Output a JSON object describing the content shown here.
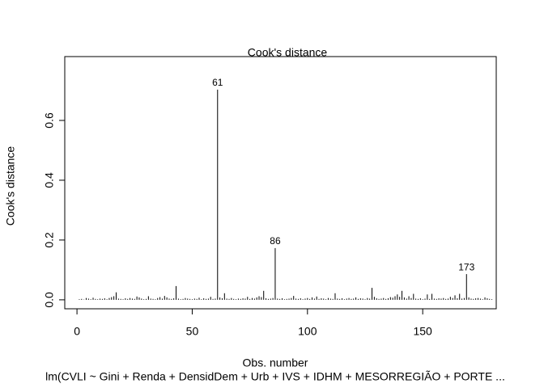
{
  "chart_data": {
    "type": "stem",
    "title": "Cook's distance",
    "x_label": "Obs. number",
    "y_label": "Cook's distance",
    "subtitle": "lm(CVLI ~ Gini + Renda + DensidDem + Urb + IVS + IDHM + MESORREGIÃO + PORTE ...",
    "color": "#000000",
    "xlim": [
      -5.3,
      181.9
    ],
    "ylim": [
      -0.03,
      0.8135
    ],
    "xticks": [
      0,
      50,
      100,
      150
    ],
    "yticks": [
      {
        "value": 0,
        "label": "0.0"
      },
      0.2,
      0.4,
      0.6
    ],
    "x": [
      1,
      2,
      3,
      4,
      5,
      6,
      7,
      8,
      9,
      10,
      11,
      12,
      13,
      14,
      15,
      16,
      17,
      18,
      19,
      20,
      21,
      22,
      23,
      24,
      25,
      26,
      27,
      28,
      29,
      30,
      31,
      32,
      33,
      34,
      35,
      36,
      37,
      38,
      39,
      40,
      41,
      42,
      43,
      44,
      45,
      46,
      47,
      48,
      49,
      50,
      51,
      52,
      53,
      54,
      55,
      56,
      57,
      58,
      59,
      60,
      61,
      62,
      63,
      64,
      65,
      66,
      67,
      68,
      69,
      70,
      71,
      72,
      73,
      74,
      75,
      76,
      77,
      78,
      79,
      80,
      81,
      82,
      83,
      84,
      85,
      86,
      87,
      88,
      89,
      90,
      91,
      92,
      93,
      94,
      95,
      96,
      97,
      98,
      99,
      100,
      101,
      102,
      103,
      104,
      105,
      106,
      107,
      108,
      109,
      110,
      111,
      112,
      113,
      114,
      115,
      116,
      117,
      118,
      119,
      120,
      121,
      122,
      123,
      124,
      125,
      126,
      127,
      128,
      129,
      130,
      131,
      132,
      133,
      134,
      135,
      136,
      137,
      138,
      139,
      140,
      141,
      142,
      143,
      144,
      145,
      146,
      147,
      148,
      149,
      150,
      151,
      152,
      153,
      154,
      155,
      156,
      157,
      158,
      159,
      160,
      161,
      162,
      163,
      164,
      165,
      166,
      167,
      168,
      169,
      170,
      171,
      172,
      173,
      174,
      175,
      176,
      177,
      178,
      179,
      180
    ],
    "values": [
      0.002,
      0.003,
      0.001,
      0.006,
      0.004,
      0.002,
      0.007,
      0.003,
      0.002,
      0.004,
      0.003,
      0.005,
      0.002,
      0.006,
      0.009,
      0.012,
      0.025,
      0.004,
      0.003,
      0.002,
      0.005,
      0.003,
      0.006,
      0.004,
      0.003,
      0.011,
      0.008,
      0.004,
      0.002,
      0.003,
      0.012,
      0.004,
      0.003,
      0.002,
      0.006,
      0.009,
      0.004,
      0.013,
      0.008,
      0.004,
      0.003,
      0.005,
      0.046,
      0.004,
      0.002,
      0.003,
      0.006,
      0.004,
      0.003,
      0.002,
      0.004,
      0.003,
      0.007,
      0.002,
      0.005,
      0.003,
      0.004,
      0.01,
      0.003,
      0.004,
      0.703,
      0.008,
      0.005,
      0.022,
      0.004,
      0.003,
      0.006,
      0.003,
      0.002,
      0.004,
      0.003,
      0.005,
      0.004,
      0.01,
      0.003,
      0.006,
      0.004,
      0.008,
      0.012,
      0.009,
      0.03,
      0.005,
      0.003,
      0.004,
      0.006,
      0.173,
      0.004,
      0.003,
      0.005,
      0.002,
      0.003,
      0.004,
      0.006,
      0.013,
      0.004,
      0.003,
      0.005,
      0.002,
      0.004,
      0.006,
      0.003,
      0.008,
      0.004,
      0.011,
      0.003,
      0.005,
      0.004,
      0.002,
      0.006,
      0.004,
      0.003,
      0.022,
      0.004,
      0.003,
      0.005,
      0.002,
      0.004,
      0.006,
      0.003,
      0.004,
      0.008,
      0.003,
      0.005,
      0.004,
      0.002,
      0.006,
      0.004,
      0.04,
      0.01,
      0.005,
      0.003,
      0.004,
      0.006,
      0.003,
      0.005,
      0.009,
      0.007,
      0.012,
      0.018,
      0.01,
      0.03,
      0.008,
      0.004,
      0.012,
      0.006,
      0.02,
      0.004,
      0.003,
      0.005,
      0.002,
      0.004,
      0.018,
      0.003,
      0.02,
      0.004,
      0.003,
      0.005,
      0.004,
      0.006,
      0.003,
      0.004,
      0.01,
      0.006,
      0.015,
      0.005,
      0.02,
      0.004,
      0.006,
      0.086,
      0.008,
      0.004,
      0.003,
      0.005,
      0.006,
      0.004,
      0.002,
      0.008,
      0.005,
      0.003,
      0.002
    ],
    "annotations": [
      {
        "text": "61",
        "x": 61
      },
      {
        "text": "86",
        "x": 86
      },
      {
        "text": "173",
        "x": 169
      }
    ]
  }
}
